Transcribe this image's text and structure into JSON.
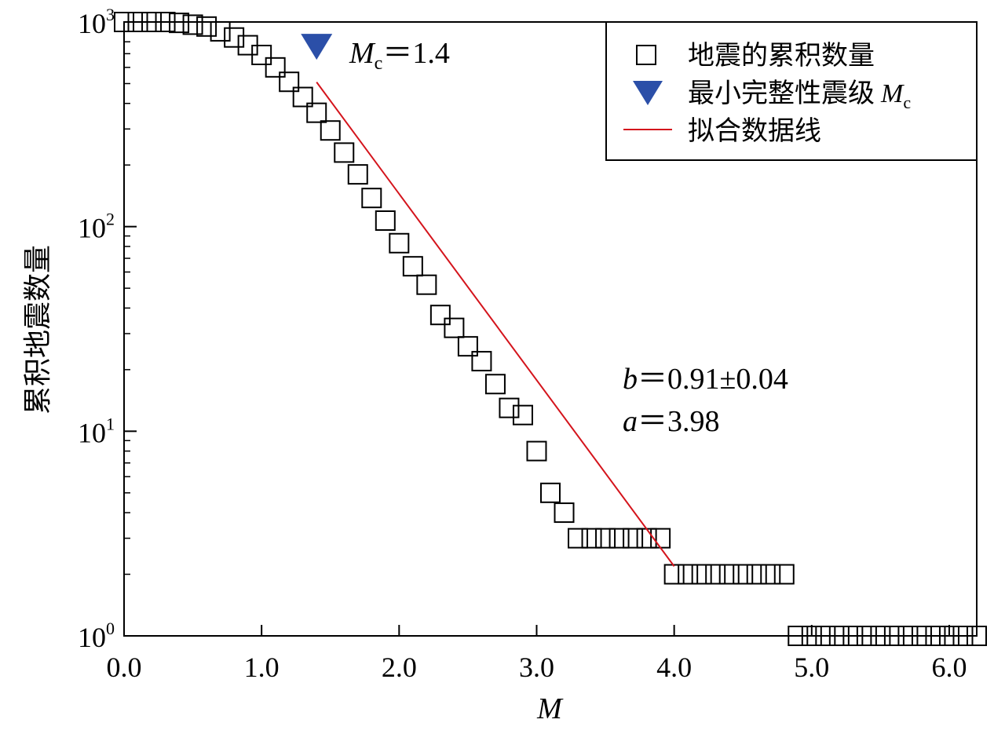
{
  "chart_data": {
    "type": "scatter",
    "title": "",
    "xlabel": "M",
    "ylabel": "累积地震数量",
    "xlim": [
      0.0,
      6.2
    ],
    "ylim": [
      1,
      1000
    ],
    "y_scale": "log",
    "x_ticks": [
      0.0,
      1.0,
      2.0,
      3.0,
      4.0,
      5.0,
      6.0
    ],
    "x_tick_labels": [
      "0.0",
      "1.0",
      "2.0",
      "3.0",
      "4.0",
      "5.0",
      "6.0"
    ],
    "y_ticks": [
      1,
      10,
      100,
      1000
    ],
    "y_tick_labels": [
      {
        "base": "10",
        "exp": "0"
      },
      {
        "base": "10",
        "exp": "1"
      },
      {
        "base": "10",
        "exp": "2"
      },
      {
        "base": "10",
        "exp": "3"
      }
    ],
    "grid": false,
    "legend_position": "top-right",
    "legend": [
      {
        "marker": "open-square",
        "label": "地震的累积数量"
      },
      {
        "marker": "filled-triangle-down",
        "label": "最小完整性震级",
        "label_italic": "M",
        "label_sub": "c"
      },
      {
        "marker": "line",
        "label": "拟合数据线"
      }
    ],
    "series": [
      {
        "marker": "open-square",
        "points": [
          [
            0.0,
            1000
          ],
          [
            0.1,
            1000
          ],
          [
            0.2,
            1000
          ],
          [
            0.3,
            1000
          ],
          [
            0.4,
            990
          ],
          [
            0.5,
            970
          ],
          [
            0.6,
            950
          ],
          [
            0.7,
            900
          ],
          [
            0.8,
            840
          ],
          [
            0.9,
            770
          ],
          [
            1.0,
            690
          ],
          [
            1.1,
            600
          ],
          [
            1.2,
            510
          ],
          [
            1.3,
            430
          ],
          [
            1.4,
            360
          ],
          [
            1.5,
            295
          ],
          [
            1.6,
            230
          ],
          [
            1.7,
            180
          ],
          [
            1.8,
            138
          ],
          [
            1.9,
            107
          ],
          [
            2.0,
            83
          ],
          [
            2.1,
            64
          ],
          [
            2.2,
            52
          ],
          [
            2.3,
            37
          ],
          [
            2.4,
            32
          ],
          [
            2.5,
            26
          ],
          [
            2.6,
            22
          ],
          [
            2.7,
            17
          ],
          [
            2.8,
            13
          ],
          [
            2.9,
            12
          ],
          [
            3.0,
            8
          ],
          [
            3.1,
            5
          ],
          [
            3.2,
            4
          ],
          [
            3.3,
            3
          ],
          [
            3.4,
            3
          ],
          [
            3.5,
            3
          ],
          [
            3.6,
            3
          ],
          [
            3.7,
            3
          ],
          [
            3.8,
            3
          ],
          [
            3.9,
            3
          ],
          [
            4.0,
            2
          ],
          [
            4.1,
            2
          ],
          [
            4.2,
            2
          ],
          [
            4.3,
            2
          ],
          [
            4.4,
            2
          ],
          [
            4.5,
            2
          ],
          [
            4.6,
            2
          ],
          [
            4.7,
            2
          ],
          [
            4.8,
            2
          ],
          [
            4.9,
            1
          ],
          [
            5.0,
            1
          ],
          [
            5.1,
            1
          ],
          [
            5.2,
            1
          ],
          [
            5.3,
            1
          ],
          [
            5.4,
            1
          ],
          [
            5.5,
            1
          ],
          [
            5.6,
            1
          ],
          [
            5.7,
            1
          ],
          [
            5.8,
            1
          ],
          [
            5.9,
            1
          ],
          [
            6.0,
            1
          ],
          [
            6.1,
            1
          ],
          [
            6.2,
            1
          ]
        ]
      }
    ],
    "mc_marker": {
      "x": 1.4,
      "y": 760,
      "label_italic": "M",
      "label_sub": "c",
      "label_value": "＝1.4"
    },
    "fit_line": {
      "x": [
        1.4,
        4.0
      ],
      "a": 3.98,
      "b": 0.91,
      "color": "#d4141c"
    },
    "annotations": [
      {
        "italic": "b",
        "text": "＝0.91±0.04"
      },
      {
        "italic": "a",
        "text": "＝3.98"
      }
    ],
    "colors": {
      "fit_line": "#d4141c",
      "mc_marker": "#2b4fa8",
      "axis": "#000000"
    }
  }
}
